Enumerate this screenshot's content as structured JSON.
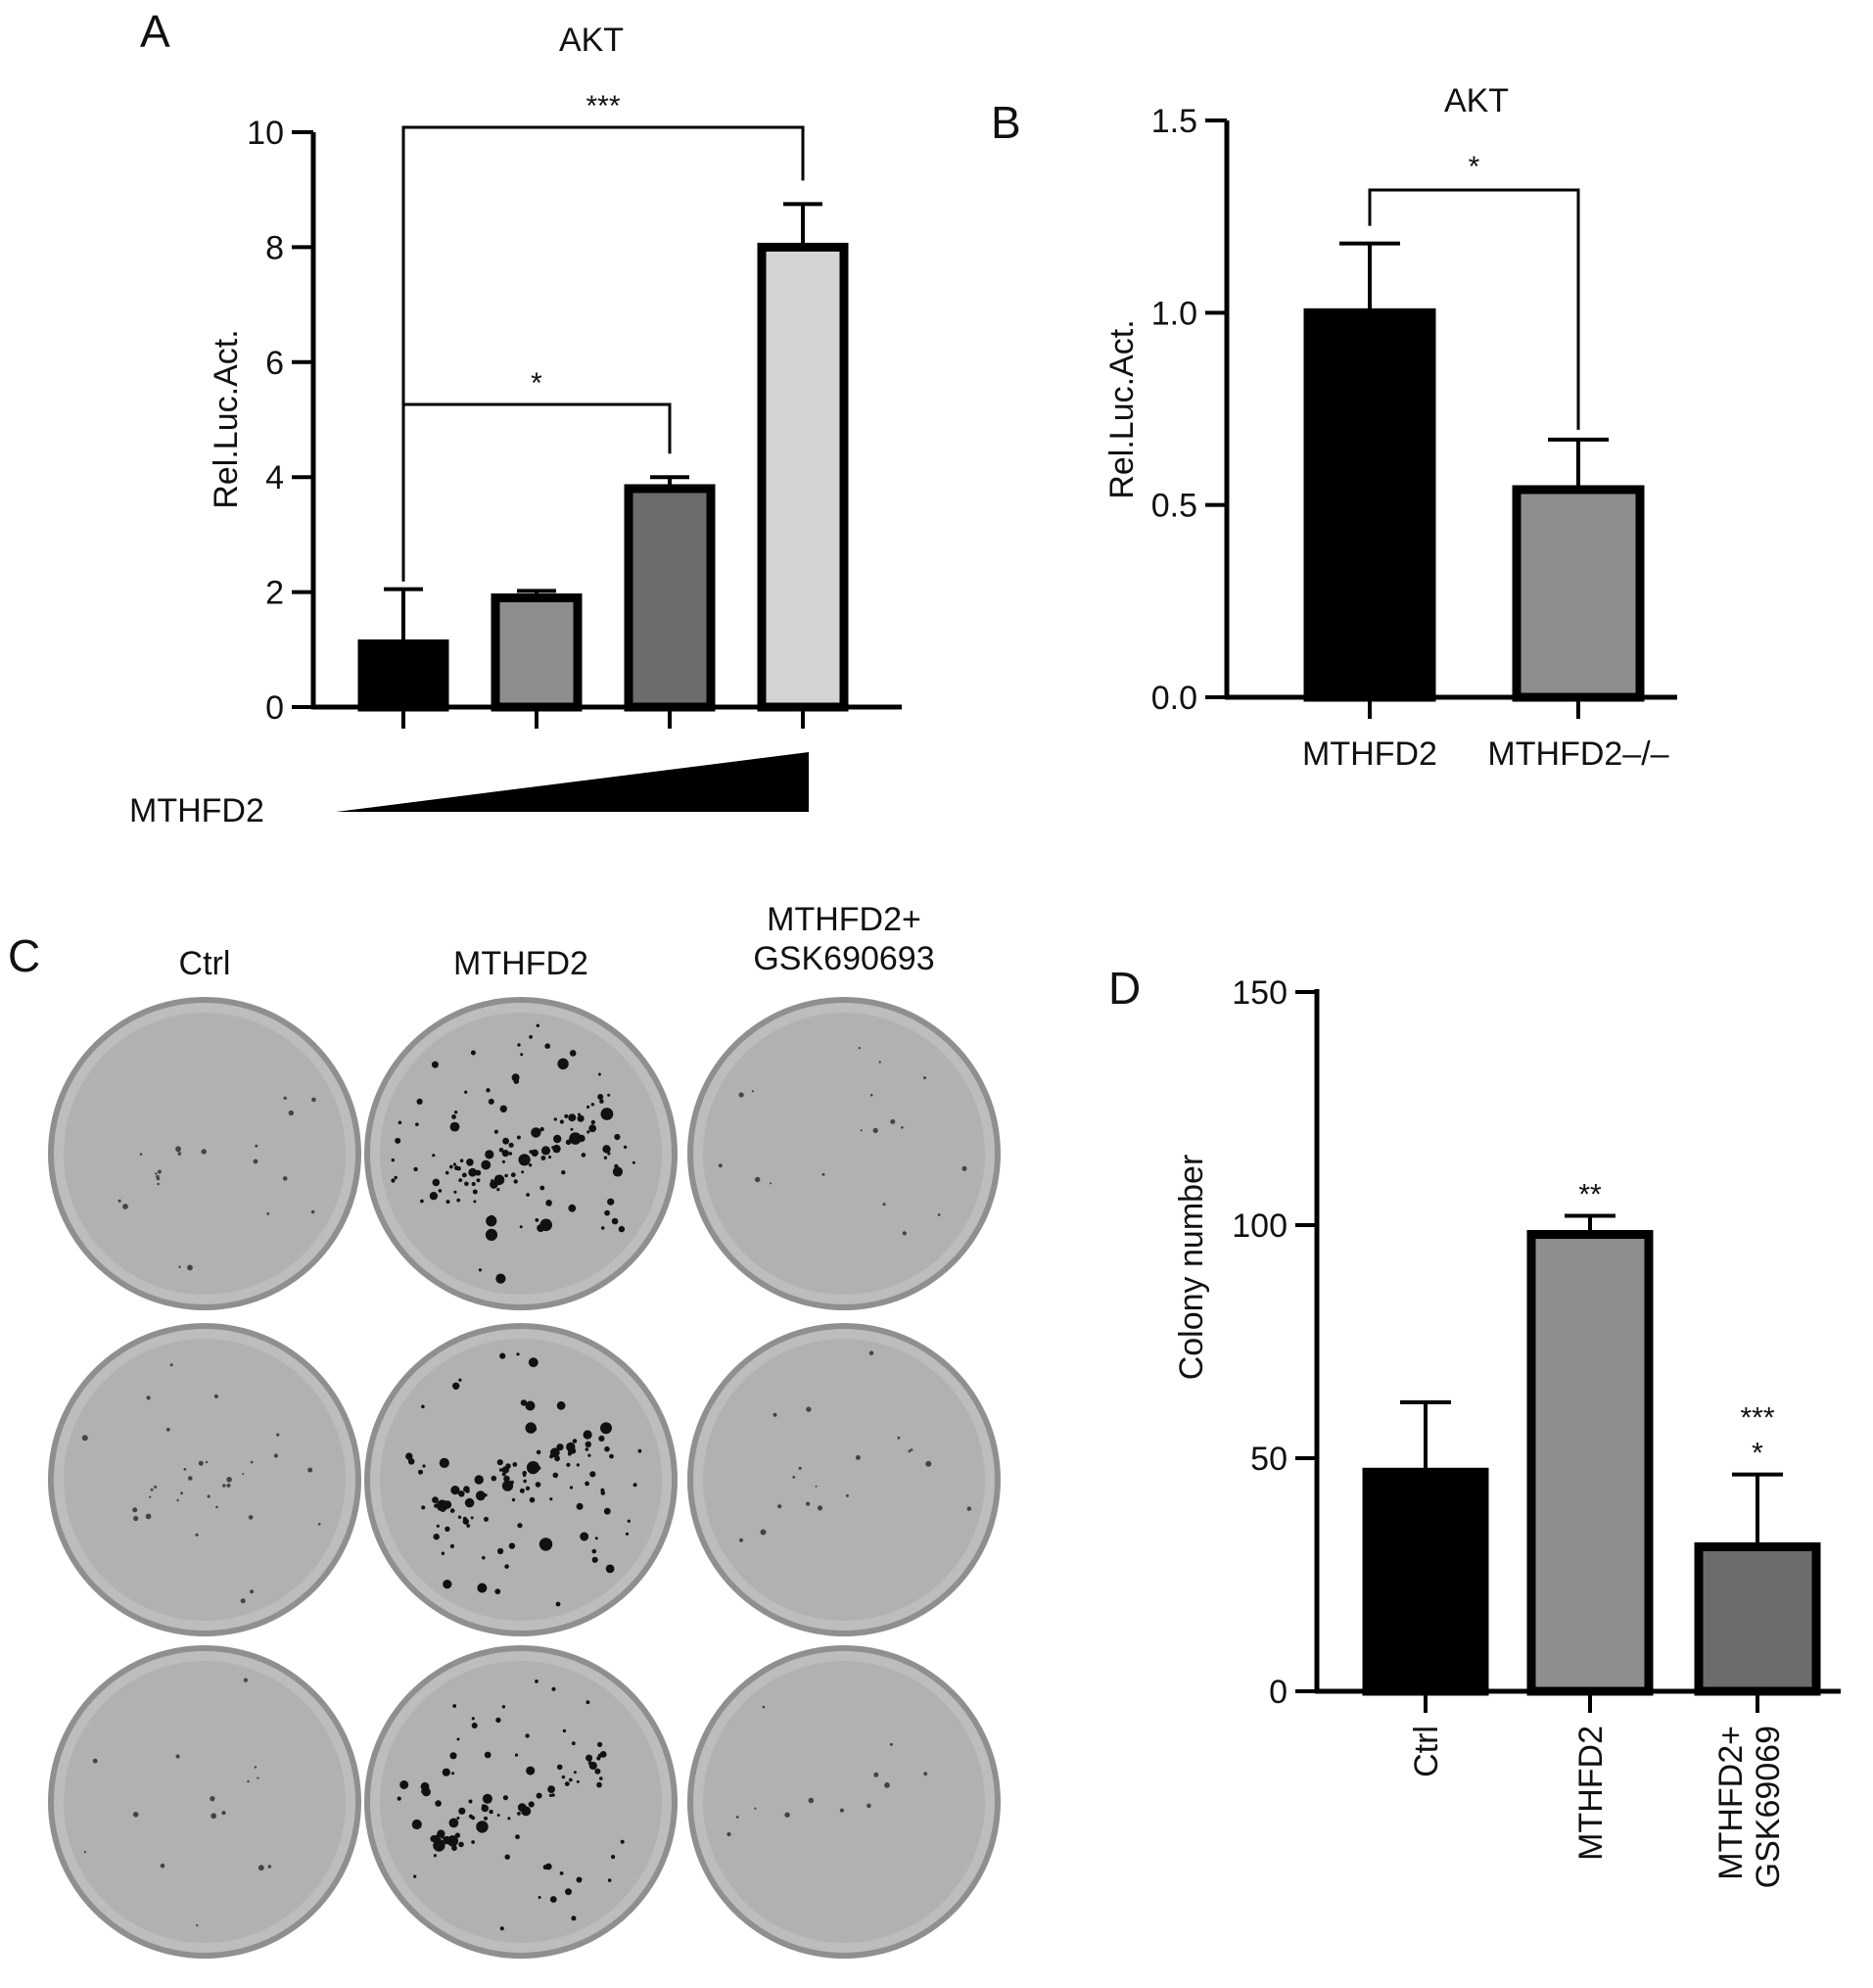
{
  "panels": {
    "A": {
      "letter": "A"
    },
    "B": {
      "letter": "B"
    },
    "C": {
      "letter": "C"
    },
    "D": {
      "letter": "D"
    }
  },
  "chart_data": [
    {
      "panel": "A",
      "type": "bar",
      "title": "AKT",
      "ylabel": "Rel.Luc.Act.",
      "xlabel": "",
      "ylim": [
        0,
        10
      ],
      "yticks": [
        "0",
        "2",
        "4",
        "6",
        "8",
        "10"
      ],
      "categories": [
        "",
        "",
        "",
        ""
      ],
      "values": [
        1.1,
        1.9,
        3.8,
        8.0
      ],
      "errors": [
        0.95,
        0.12,
        0.2,
        0.75
      ],
      "bar_colors": [
        "#000000",
        "#8e8e8e",
        "#6c6c6c",
        "#d4d4d4"
      ],
      "ramp_label": "MTHFD2",
      "significance": [
        {
          "from": 0,
          "to": 3,
          "label": "***"
        },
        {
          "from": 0,
          "to": 2,
          "label": "*"
        }
      ]
    },
    {
      "panel": "B",
      "type": "bar",
      "title": "AKT",
      "ylabel": "Rel.Luc.Act.",
      "xlabel": "",
      "ylim": [
        0,
        1.5
      ],
      "yticks": [
        "0.0",
        "0.5",
        "1.0",
        "1.5"
      ],
      "categories": [
        "MTHFD2",
        "MTHFD2–/–"
      ],
      "values": [
        1.0,
        0.54
      ],
      "errors": [
        0.18,
        0.13
      ],
      "bar_colors": [
        "#000000",
        "#8e8e8e"
      ],
      "significance": [
        {
          "from": 0,
          "to": 1,
          "label": "*"
        }
      ]
    },
    {
      "panel": "D",
      "type": "bar",
      "title": "",
      "ylabel": "Colony number",
      "xlabel": "",
      "ylim": [
        0,
        150
      ],
      "yticks": [
        "0",
        "50",
        "100",
        "150"
      ],
      "categories": [
        "Ctrl",
        "MTHFD2",
        "MTHFD2+\nGSK69069"
      ],
      "values": [
        47,
        98,
        31
      ],
      "errors": [
        15,
        4,
        15.5
      ],
      "bar_colors": [
        "#000000",
        "#8e8e8e",
        "#6c6c6c"
      ],
      "annotations": [
        {
          "bar": 1,
          "label": "**"
        },
        {
          "bar": 2,
          "label": "***"
        },
        {
          "bar": 2,
          "label": "*"
        }
      ]
    }
  ],
  "panelC": {
    "col_labels": [
      "Ctrl",
      "MTHFD2",
      "MTHFD2+\nGSK690693"
    ],
    "rows": 3,
    "colony_density": [
      [
        0.35,
        2.2,
        0.3
      ],
      [
        0.55,
        1.9,
        0.3
      ],
      [
        0.25,
        1.6,
        0.2
      ]
    ]
  }
}
